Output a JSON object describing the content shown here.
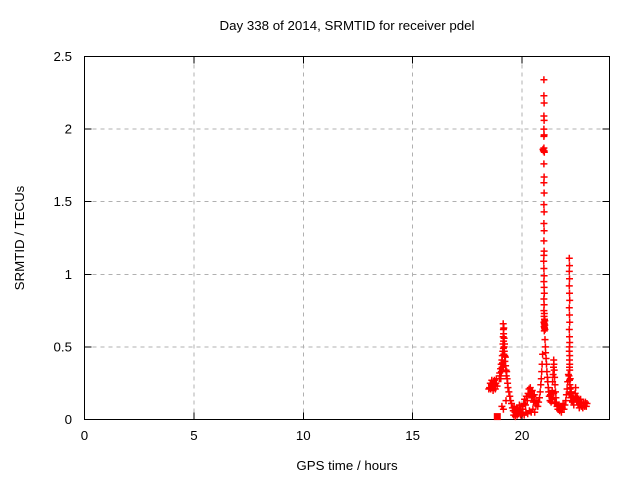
{
  "figure": {
    "background": "#ffffff",
    "border_color": "#000000",
    "text_color": "#000000"
  },
  "chart_data": {
    "type": "scatter",
    "title": "Day 338 of 2014, SRMTID for receiver pdel",
    "xlabel": "GPS time / hours",
    "ylabel": "SRMTID / TECUs",
    "xlim": [
      0,
      24
    ],
    "ylim": [
      0,
      2.5
    ],
    "xticks": [
      0,
      5,
      10,
      15,
      20
    ],
    "xtick_labels": [
      "0",
      "5",
      "10",
      "15",
      "20"
    ],
    "yticks": [
      0,
      0.5,
      1,
      1.5,
      2,
      2.5
    ],
    "ytick_labels": [
      "0",
      "0.5",
      "1",
      "1.5",
      "2",
      "2.5"
    ],
    "grid": true,
    "grid_color": "#b0b0b0",
    "legend": "none",
    "marker": "plus",
    "marker_color": "#ff0000",
    "dense_cluster": {
      "x": 18.87,
      "y": 0.02
    },
    "points": [
      [
        18.48,
        0.21
      ],
      [
        18.52,
        0.22
      ],
      [
        18.55,
        0.25
      ],
      [
        18.57,
        0.21
      ],
      [
        18.6,
        0.24
      ],
      [
        18.62,
        0.27
      ],
      [
        18.64,
        0.22
      ],
      [
        18.66,
        0.25
      ],
      [
        18.68,
        0.2
      ],
      [
        18.7,
        0.26
      ],
      [
        18.72,
        0.23
      ],
      [
        18.74,
        0.27
      ],
      [
        18.76,
        0.24
      ],
      [
        18.78,
        0.21
      ],
      [
        18.8,
        0.25
      ],
      [
        18.83,
        0.28
      ],
      [
        18.86,
        0.23
      ],
      [
        18.96,
        0.28
      ],
      [
        18.98,
        0.32
      ],
      [
        19.0,
        0.3
      ],
      [
        19.02,
        0.35
      ],
      [
        19.03,
        0.28
      ],
      [
        19.05,
        0.38
      ],
      [
        19.06,
        0.33
      ],
      [
        19.08,
        0.41
      ],
      [
        19.09,
        0.36
      ],
      [
        19.1,
        0.44
      ],
      [
        19.11,
        0.39
      ],
      [
        19.12,
        0.47
      ],
      [
        19.13,
        0.52
      ],
      [
        19.14,
        0.66
      ],
      [
        19.14,
        0.57
      ],
      [
        19.15,
        0.62
      ],
      [
        19.15,
        0.49
      ],
      [
        19.16,
        0.59
      ],
      [
        19.16,
        0.54
      ],
      [
        19.17,
        0.63
      ],
      [
        19.17,
        0.45
      ],
      [
        19.18,
        0.5
      ],
      [
        19.18,
        0.56
      ],
      [
        19.19,
        0.47
      ],
      [
        19.2,
        0.52
      ],
      [
        19.21,
        0.44
      ],
      [
        19.22,
        0.4
      ],
      [
        19.24,
        0.43
      ],
      [
        19.25,
        0.37
      ],
      [
        19.27,
        0.34
      ],
      [
        19.28,
        0.3
      ],
      [
        19.3,
        0.33
      ],
      [
        19.32,
        0.28
      ],
      [
        19.34,
        0.25
      ],
      [
        19.36,
        0.22
      ],
      [
        19.4,
        0.19
      ],
      [
        19.44,
        0.16
      ],
      [
        19.48,
        0.13
      ],
      [
        19.52,
        0.11
      ],
      [
        19.08,
        0.09
      ],
      [
        19.15,
        0.07
      ],
      [
        19.27,
        0.13
      ],
      [
        19.56,
        0.08
      ],
      [
        19.6,
        0.06
      ],
      [
        19.62,
        0.03
      ],
      [
        19.64,
        0.09
      ],
      [
        19.68,
        0.05
      ],
      [
        19.7,
        0.02
      ],
      [
        19.72,
        0.07
      ],
      [
        19.76,
        0.04
      ],
      [
        19.78,
        0.03
      ],
      [
        19.8,
        0.08
      ],
      [
        19.84,
        0.06
      ],
      [
        19.86,
        0.04
      ],
      [
        19.88,
        0.1
      ],
      [
        19.92,
        0.07
      ],
      [
        19.94,
        0.03
      ],
      [
        19.96,
        0.05
      ],
      [
        20.0,
        0.09
      ],
      [
        20.02,
        0.04
      ],
      [
        20.04,
        0.07
      ],
      [
        20.08,
        0.11
      ],
      [
        20.1,
        0.03
      ],
      [
        20.12,
        0.14
      ],
      [
        20.16,
        0.1
      ],
      [
        20.18,
        0.05
      ],
      [
        20.2,
        0.16
      ],
      [
        20.24,
        0.13
      ],
      [
        20.26,
        0.04
      ],
      [
        20.28,
        0.18
      ],
      [
        20.32,
        0.21
      ],
      [
        20.34,
        0.06
      ],
      [
        20.35,
        0.17
      ],
      [
        20.38,
        0.22
      ],
      [
        20.41,
        0.19
      ],
      [
        20.42,
        0.05
      ],
      [
        20.44,
        0.15
      ],
      [
        20.47,
        0.2
      ],
      [
        20.5,
        0.16
      ],
      [
        20.5,
        0.07
      ],
      [
        20.53,
        0.12
      ],
      [
        20.56,
        0.17
      ],
      [
        20.58,
        0.05
      ],
      [
        20.6,
        0.13
      ],
      [
        20.64,
        0.1
      ],
      [
        20.68,
        0.13
      ],
      [
        20.72,
        0.09
      ],
      [
        20.76,
        0.12
      ],
      [
        20.8,
        0.15
      ],
      [
        20.83,
        0.19
      ],
      [
        20.86,
        0.24
      ],
      [
        20.88,
        0.28
      ],
      [
        20.9,
        0.33
      ],
      [
        20.92,
        0.38
      ],
      [
        20.94,
        0.45
      ],
      [
        21.0,
        2.34
      ],
      [
        21.0,
        2.23
      ],
      [
        21.01,
        2.18
      ],
      [
        21.0,
        2.09
      ],
      [
        21.01,
        2.06
      ],
      [
        21.0,
        2.0
      ],
      [
        21.01,
        1.96
      ],
      [
        21.0,
        1.95
      ],
      [
        21.0,
        1.87
      ],
      [
        21.01,
        1.85
      ],
      [
        21.02,
        1.84
      ],
      [
        20.96,
        1.86
      ],
      [
        20.98,
        1.85
      ],
      [
        21.0,
        1.76
      ],
      [
        21.01,
        1.67
      ],
      [
        21.0,
        1.63
      ],
      [
        21.01,
        1.56
      ],
      [
        21.0,
        1.48
      ],
      [
        21.01,
        1.43
      ],
      [
        21.0,
        1.35
      ],
      [
        21.01,
        1.3
      ],
      [
        21.0,
        1.23
      ],
      [
        21.01,
        1.16
      ],
      [
        21.0,
        1.13
      ],
      [
        20.99,
        1.09
      ],
      [
        21.0,
        1.04
      ],
      [
        21.01,
        0.99
      ],
      [
        21.0,
        0.95
      ],
      [
        21.01,
        0.91
      ],
      [
        21.02,
        0.87
      ],
      [
        21.0,
        0.83
      ],
      [
        21.01,
        0.79
      ],
      [
        21.0,
        0.75
      ],
      [
        21.02,
        0.73
      ],
      [
        21.01,
        0.71
      ],
      [
        21.03,
        0.69
      ],
      [
        21.0,
        0.67
      ],
      [
        21.02,
        0.66
      ],
      [
        21.04,
        0.65
      ],
      [
        21.01,
        0.64
      ],
      [
        21.03,
        0.63
      ],
      [
        21.05,
        0.62
      ],
      [
        21.02,
        0.61
      ],
      [
        21.04,
        0.68
      ],
      [
        21.05,
        0.55
      ],
      [
        21.07,
        0.5
      ],
      [
        21.08,
        0.46
      ],
      [
        21.1,
        0.42
      ],
      [
        21.12,
        0.38
      ],
      [
        21.14,
        0.33
      ],
      [
        21.16,
        0.29
      ],
      [
        21.18,
        0.26
      ],
      [
        21.2,
        0.22
      ],
      [
        21.22,
        0.19
      ],
      [
        21.25,
        0.16
      ],
      [
        21.28,
        0.13
      ],
      [
        21.3,
        0.17
      ],
      [
        21.33,
        0.12
      ],
      [
        21.36,
        0.15
      ],
      [
        21.38,
        0.2
      ],
      [
        21.4,
        0.26
      ],
      [
        21.42,
        0.31
      ],
      [
        21.44,
        0.36
      ],
      [
        21.45,
        0.41
      ],
      [
        21.46,
        0.38
      ],
      [
        21.47,
        0.34
      ],
      [
        21.49,
        0.29
      ],
      [
        21.51,
        0.24
      ],
      [
        21.53,
        0.19
      ],
      [
        21.55,
        0.15
      ],
      [
        21.57,
        0.12
      ],
      [
        21.41,
        0.14
      ],
      [
        21.45,
        0.18
      ],
      [
        21.5,
        0.11
      ],
      [
        21.6,
        0.09
      ],
      [
        21.64,
        0.07
      ],
      [
        21.68,
        0.1
      ],
      [
        21.72,
        0.06
      ],
      [
        21.76,
        0.09
      ],
      [
        21.8,
        0.05
      ],
      [
        21.84,
        0.08
      ],
      [
        21.88,
        0.11
      ],
      [
        21.92,
        0.07
      ],
      [
        21.96,
        0.1
      ],
      [
        22.0,
        0.13
      ],
      [
        22.03,
        0.17
      ],
      [
        22.06,
        0.21
      ],
      [
        22.09,
        0.26
      ],
      [
        22.12,
        0.31
      ],
      [
        22.16,
        1.11
      ],
      [
        22.17,
        1.06
      ],
      [
        22.16,
        1.02
      ],
      [
        22.17,
        0.97
      ],
      [
        22.16,
        0.92
      ],
      [
        22.17,
        0.87
      ],
      [
        22.18,
        0.82
      ],
      [
        22.16,
        0.77
      ],
      [
        22.17,
        0.72
      ],
      [
        22.18,
        0.67
      ],
      [
        22.16,
        0.62
      ],
      [
        22.17,
        0.57
      ],
      [
        22.18,
        0.53
      ],
      [
        22.17,
        0.5
      ],
      [
        22.16,
        0.47
      ],
      [
        22.18,
        0.44
      ],
      [
        22.17,
        0.41
      ],
      [
        22.18,
        0.38
      ],
      [
        22.17,
        0.36
      ],
      [
        22.18,
        0.34
      ],
      [
        22.15,
        0.3
      ],
      [
        22.17,
        0.27
      ],
      [
        22.19,
        0.24
      ],
      [
        22.21,
        0.28
      ],
      [
        22.2,
        0.21
      ],
      [
        22.22,
        0.18
      ],
      [
        22.24,
        0.22
      ],
      [
        22.23,
        0.15
      ],
      [
        22.25,
        0.19
      ],
      [
        22.26,
        0.13
      ],
      [
        22.28,
        0.16
      ],
      [
        22.31,
        0.12
      ],
      [
        22.34,
        0.15
      ],
      [
        22.37,
        0.1
      ],
      [
        22.4,
        0.14
      ],
      [
        22.43,
        0.18
      ],
      [
        22.45,
        0.22
      ],
      [
        22.47,
        0.16
      ],
      [
        22.5,
        0.12
      ],
      [
        22.53,
        0.15
      ],
      [
        22.56,
        0.1
      ],
      [
        22.59,
        0.13
      ],
      [
        22.62,
        0.08
      ],
      [
        22.65,
        0.11
      ],
      [
        22.68,
        0.14
      ],
      [
        22.71,
        0.09
      ],
      [
        22.74,
        0.12
      ],
      [
        22.78,
        0.08
      ],
      [
        22.82,
        0.11
      ],
      [
        22.86,
        0.09
      ],
      [
        22.9,
        0.12
      ],
      [
        22.94,
        0.09
      ],
      [
        22.97,
        0.11
      ]
    ]
  }
}
